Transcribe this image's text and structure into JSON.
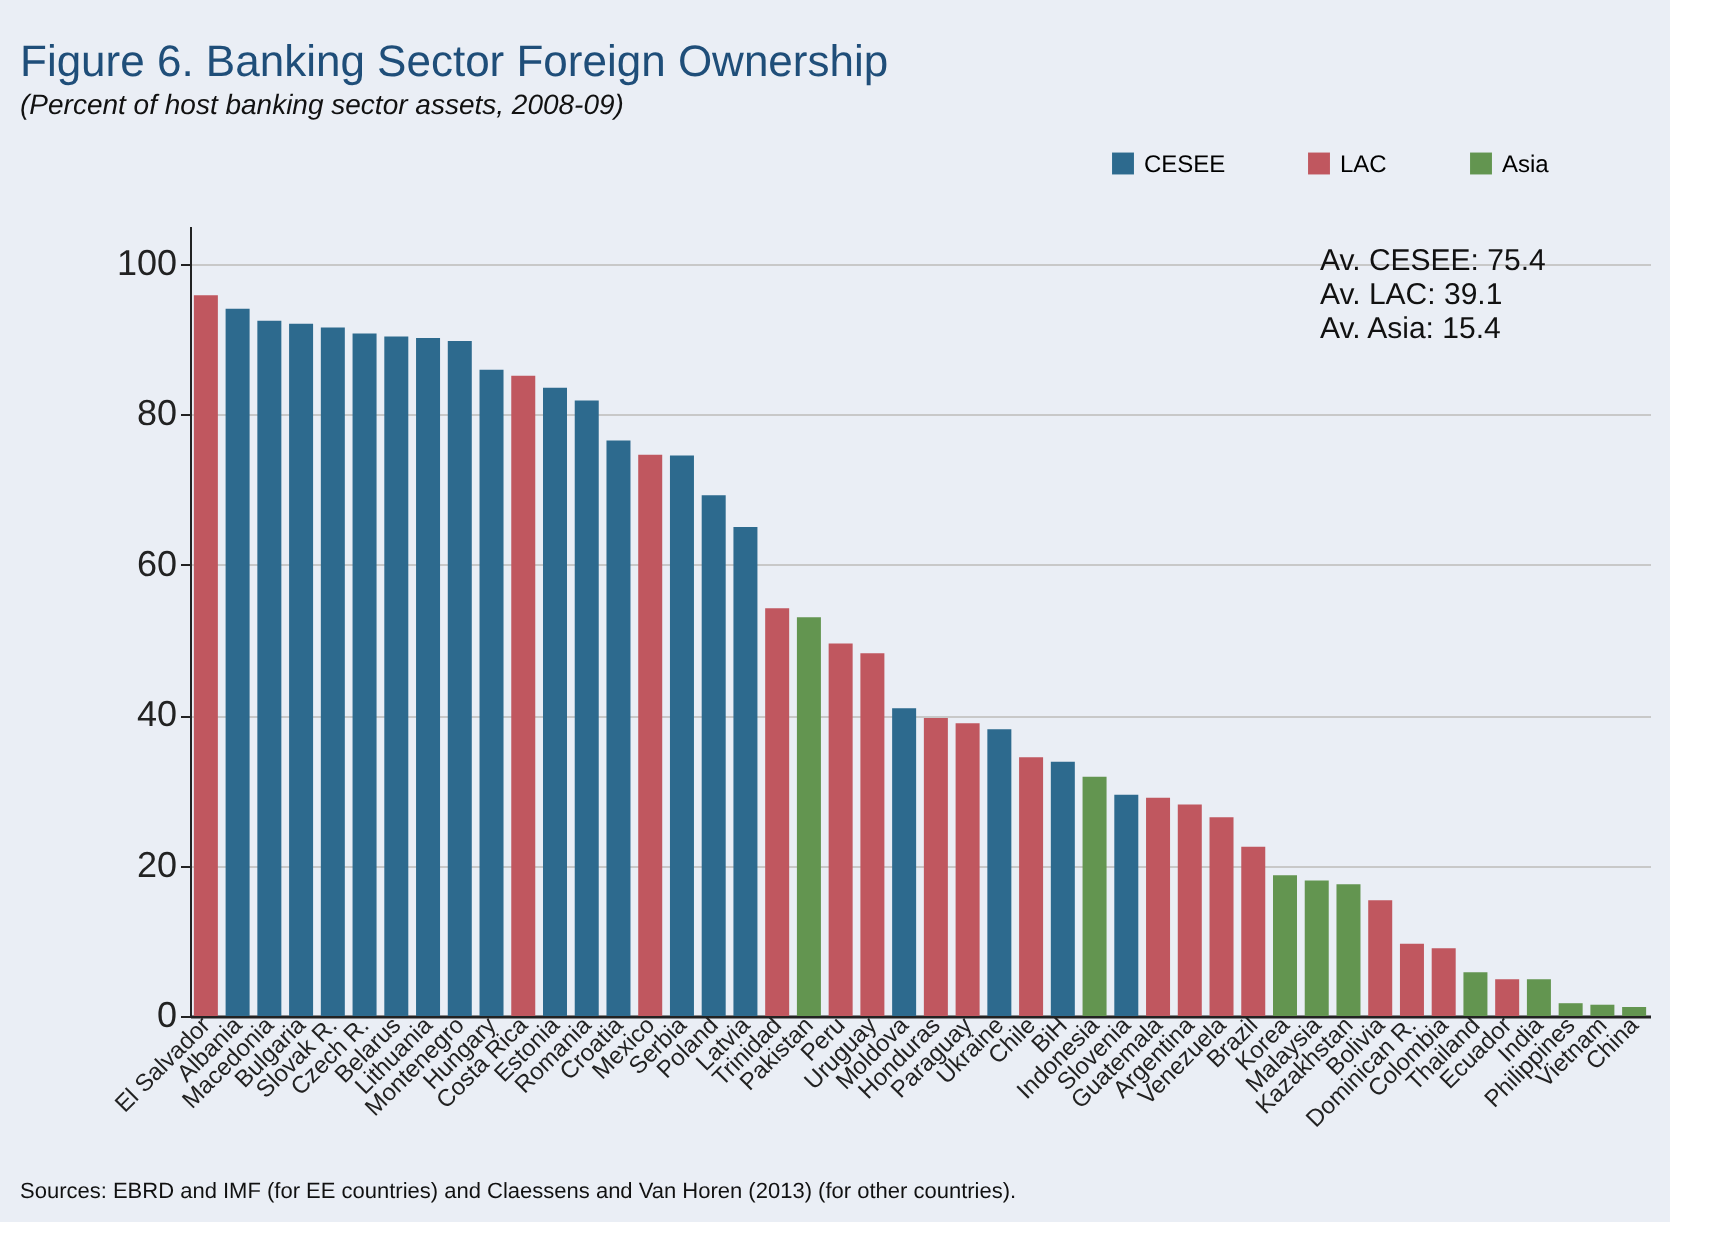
{
  "chart_data": {
    "type": "bar",
    "title": "Figure 6. Banking Sector Foreign Ownership",
    "subtitle": "(Percent of host banking sector assets, 2008-09)",
    "categories": [
      "El Salvador",
      "Albania",
      "Macedonia",
      "Bulgaria",
      "Slovak R.",
      "Czech R.",
      "Belarus",
      "Lithuania",
      "Montenegro",
      "Hungary",
      "Costa Rica",
      "Estonia",
      "Romania",
      "Croatia",
      "Mexico",
      "Serbia",
      "Poland",
      "Latvia",
      "Trinidad",
      "Pakistan",
      "Peru",
      "Uruguay",
      "Moldova",
      "Honduras",
      "Paraguay",
      "Ukraine",
      "Chile",
      "BiH",
      "Indonesia",
      "Slovenia",
      "Guatemala",
      "Argentina",
      "Venezuela",
      "Brazil",
      "Korea",
      "Malaysia",
      "Kazakhstan",
      "Bolivia",
      "Dominican R.",
      "Colombia",
      "Thailand",
      "Ecuador",
      "India",
      "Philippines",
      "Vietnam",
      "China"
    ],
    "series": [
      {
        "name": "CESEE",
        "color": "#2d6a8e",
        "values": [
          null,
          94,
          92.4,
          92,
          91.5,
          90.7,
          90.3,
          90.1,
          89.7,
          85.9,
          null,
          83.5,
          81.8,
          76.5,
          null,
          74.5,
          69.2,
          65,
          null,
          null,
          null,
          null,
          40.9,
          null,
          null,
          38.1,
          null,
          33.8,
          null,
          29.4,
          null,
          null,
          null,
          null,
          null,
          null,
          null,
          null,
          null,
          null,
          null,
          null,
          null,
          null,
          null,
          null
        ]
      },
      {
        "name": "LAC",
        "color": "#c0575f",
        "values": [
          95.8,
          null,
          null,
          null,
          null,
          null,
          null,
          null,
          null,
          null,
          85.1,
          null,
          null,
          null,
          74.6,
          null,
          null,
          null,
          54.2,
          null,
          49.5,
          48.2,
          null,
          39.6,
          38.9,
          null,
          34.4,
          null,
          null,
          null,
          29,
          28.1,
          26.4,
          22.5,
          null,
          null,
          null,
          15.4,
          9.6,
          9,
          null,
          4.9,
          null,
          null,
          null,
          null
        ]
      },
      {
        "name": "Asia",
        "color": "#639550",
        "values": [
          null,
          null,
          null,
          null,
          null,
          null,
          null,
          null,
          null,
          null,
          null,
          null,
          null,
          null,
          null,
          null,
          null,
          null,
          null,
          53,
          null,
          null,
          null,
          null,
          null,
          null,
          null,
          null,
          31.8,
          null,
          null,
          null,
          null,
          null,
          18.7,
          18,
          17.5,
          null,
          null,
          null,
          5.8,
          null,
          4.9,
          1.7,
          1.5,
          1.2
        ]
      }
    ],
    "ylim": [
      0,
      105
    ],
    "yticks": [
      0,
      20,
      40,
      60,
      80,
      100
    ],
    "grid": "y",
    "legend": "top right",
    "annotations": [
      "Av. CESEE: 75.4",
      "Av. LAC: 39.1",
      "Av. Asia: 15.4",
      "Sources: EBRD and IMF (for EE countries) and Claessens and Van Horen (2013) (for other countries)."
    ]
  }
}
